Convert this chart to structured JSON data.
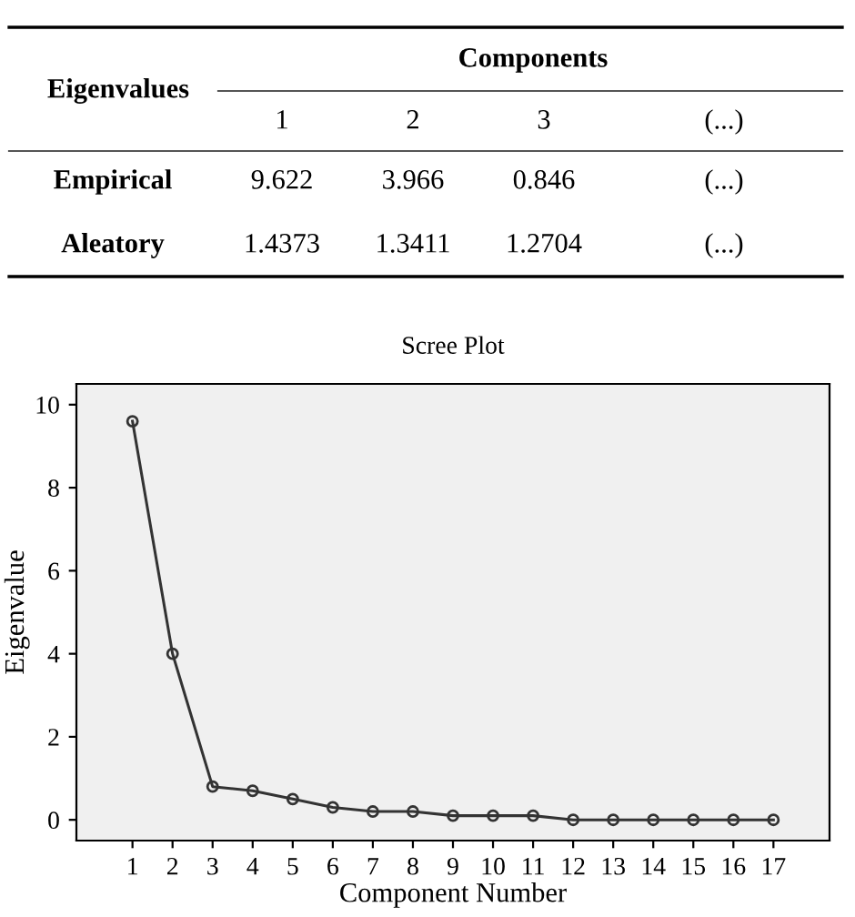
{
  "chart_data": [
    {
      "type": "other",
      "ylabel": "Eigenvalues",
      "xlabel": "Components",
      "categories": [
        "1",
        "2",
        "3",
        "(...)"
      ],
      "y_categories": [
        "Empirical",
        "Aleatory"
      ],
      "cell_labels": [
        [
          "9.622",
          "3.966",
          "0.846",
          "(...)"
        ],
        [
          "1.4373",
          "1.3411",
          "1.2704",
          "(...)"
        ]
      ]
    },
    {
      "type": "line",
      "title": "Scree Plot",
      "xlabel": "Component Number",
      "ylabel": "Eigenvalue",
      "x": [
        1,
        2,
        3,
        4,
        5,
        6,
        7,
        8,
        9,
        10,
        11,
        12,
        13,
        14,
        15,
        16,
        17
      ],
      "series": [
        {
          "color": "#333333",
          "values": [
            9.6,
            4.0,
            0.8,
            0.7,
            0.5,
            0.3,
            0.2,
            0.2,
            0.1,
            0.1,
            0.1,
            0.0,
            0.0,
            0.0,
            0.0,
            0.0,
            0.0
          ]
        }
      ],
      "xlim": [
        -0.4,
        18.4
      ],
      "xticks": [
        1,
        2,
        3,
        4,
        5,
        6,
        7,
        8,
        9,
        10,
        11,
        12,
        13,
        14,
        15,
        16,
        17
      ],
      "ylim": [
        -0.5,
        10.5
      ],
      "yticks": [
        0,
        2,
        4,
        6,
        8,
        10
      ],
      "marker": "circle",
      "line_style": "solid",
      "grid": false,
      "legend": false
    }
  ]
}
